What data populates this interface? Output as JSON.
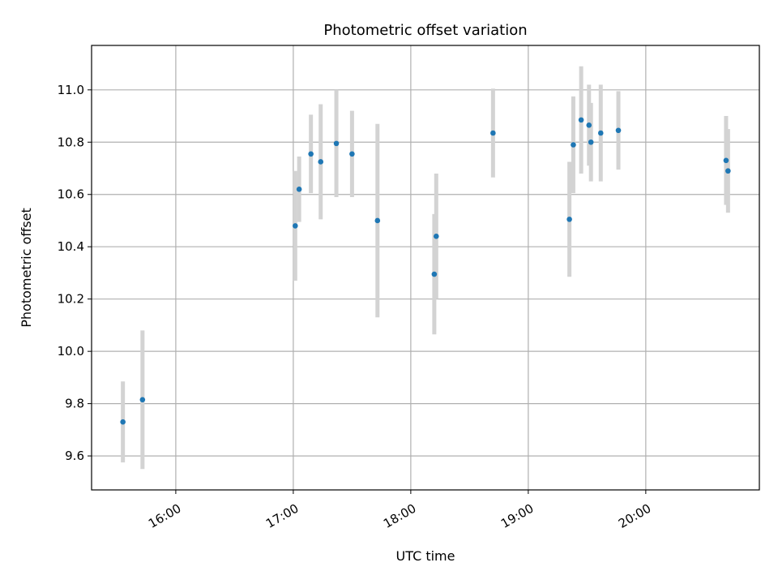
{
  "chart_data": {
    "type": "scatter",
    "title": "Photometric offset variation",
    "xlabel": "UTC time",
    "ylabel": "Photometric offset",
    "x_ticks": [
      "16:00",
      "17:00",
      "18:00",
      "19:00",
      "20:00"
    ],
    "y_ticks": [
      "9.6",
      "9.8",
      "10.0",
      "10.2",
      "10.4",
      "10.6",
      "10.8",
      "11.0"
    ],
    "xlim": [
      "15:17",
      "20:58"
    ],
    "ylim": [
      9.47,
      11.17
    ],
    "grid": true,
    "point_color": "#1f77b4",
    "errorbar_color": "#d3d3d3",
    "points": [
      {
        "t": "15:33",
        "y": 9.73,
        "err": 0.155
      },
      {
        "t": "15:43",
        "y": 9.815,
        "err": 0.265
      },
      {
        "t": "17:01",
        "y": 10.48,
        "err": 0.21
      },
      {
        "t": "17:03",
        "y": 10.62,
        "err": 0.125
      },
      {
        "t": "17:09",
        "y": 10.755,
        "err": 0.15
      },
      {
        "t": "17:14",
        "y": 10.725,
        "err": 0.22
      },
      {
        "t": "17:22",
        "y": 10.795,
        "err": 0.205
      },
      {
        "t": "17:30",
        "y": 10.755,
        "err": 0.165
      },
      {
        "t": "17:43",
        "y": 10.5,
        "err": 0.37
      },
      {
        "t": "18:12",
        "y": 10.295,
        "err": 0.23
      },
      {
        "t": "18:13",
        "y": 10.44,
        "err": 0.24
      },
      {
        "t": "18:42",
        "y": 10.835,
        "err": 0.17
      },
      {
        "t": "19:21",
        "y": 10.505,
        "err": 0.22
      },
      {
        "t": "19:23",
        "y": 10.79,
        "err": 0.185
      },
      {
        "t": "19:27",
        "y": 10.885,
        "err": 0.205
      },
      {
        "t": "19:31",
        "y": 10.865,
        "err": 0.155
      },
      {
        "t": "19:32",
        "y": 10.8,
        "err": 0.15
      },
      {
        "t": "19:37",
        "y": 10.835,
        "err": 0.185
      },
      {
        "t": "19:46",
        "y": 10.845,
        "err": 0.15
      },
      {
        "t": "20:41",
        "y": 10.73,
        "err": 0.17
      },
      {
        "t": "20:42",
        "y": 10.69,
        "err": 0.16
      }
    ]
  }
}
